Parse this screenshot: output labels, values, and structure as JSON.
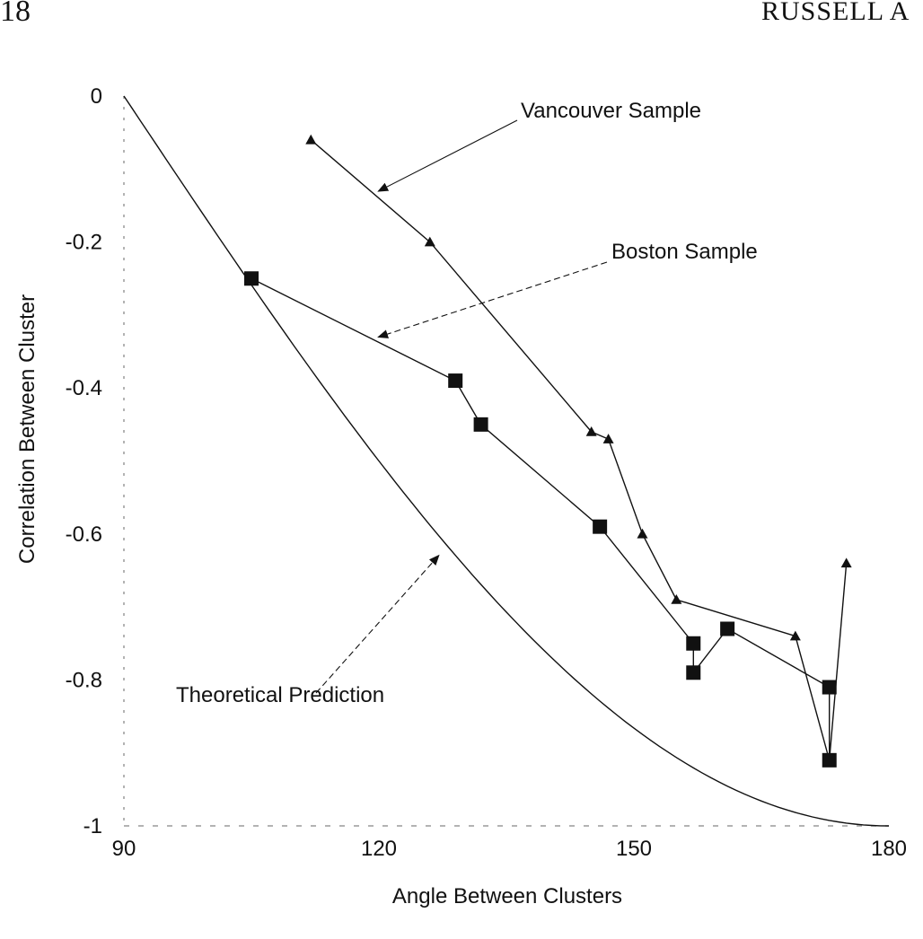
{
  "page_header": {
    "page_number": "18",
    "running_head": "RUSSELL A"
  },
  "chart_data": {
    "type": "scatter",
    "title": "",
    "xlabel": "Angle Between Clusters",
    "ylabel": "Correlation Between Cluster",
    "xlim": [
      90,
      180
    ],
    "ylim": [
      -1,
      0
    ],
    "x_ticks": [
      90,
      120,
      150,
      180
    ],
    "x_tick_labels": [
      "90",
      "120",
      "150",
      "180"
    ],
    "y_ticks": [
      0,
      -0.2,
      -0.4,
      -0.6,
      -0.8,
      -1
    ],
    "y_tick_labels": [
      "0",
      "-0.2",
      "-0.4",
      "-0.6",
      "-0.8",
      "-1"
    ],
    "grid": false,
    "series": [
      {
        "name": "Vancouver Sample",
        "marker": "triangle",
        "connect": true,
        "points": [
          {
            "x": 112,
            "y": -0.06
          },
          {
            "x": 126,
            "y": -0.2
          },
          {
            "x": 145,
            "y": -0.46
          },
          {
            "x": 147,
            "y": -0.47
          },
          {
            "x": 151,
            "y": -0.6
          },
          {
            "x": 155,
            "y": -0.69
          },
          {
            "x": 169,
            "y": -0.74
          },
          {
            "x": 173,
            "y": -0.91
          },
          {
            "x": 175,
            "y": -0.64
          }
        ]
      },
      {
        "name": "Boston Sample",
        "marker": "square",
        "connect": true,
        "points": [
          {
            "x": 105,
            "y": -0.25
          },
          {
            "x": 129,
            "y": -0.39
          },
          {
            "x": 132,
            "y": -0.45
          },
          {
            "x": 146,
            "y": -0.59
          },
          {
            "x": 157,
            "y": -0.75
          },
          {
            "x": 157,
            "y": -0.79
          },
          {
            "x": 161,
            "y": -0.73
          },
          {
            "x": 173,
            "y": -0.81
          },
          {
            "x": 173,
            "y": -0.91
          }
        ]
      },
      {
        "name": "Theoretical Prediction",
        "marker": "none",
        "connect": true,
        "function": "cos(angle)"
      }
    ],
    "annotations": [
      {
        "text": "Vancouver Sample",
        "series": "Vancouver Sample",
        "arrow_to": {
          "x": 120,
          "y": -0.13
        }
      },
      {
        "text": "Boston Sample",
        "series": "Boston Sample",
        "arrow_to": {
          "x": 120,
          "y": -0.33
        }
      },
      {
        "text": "Theoretical Prediction",
        "series": "Theoretical Prediction",
        "arrow_to": {
          "x": 127,
          "y": -0.63
        }
      }
    ]
  }
}
